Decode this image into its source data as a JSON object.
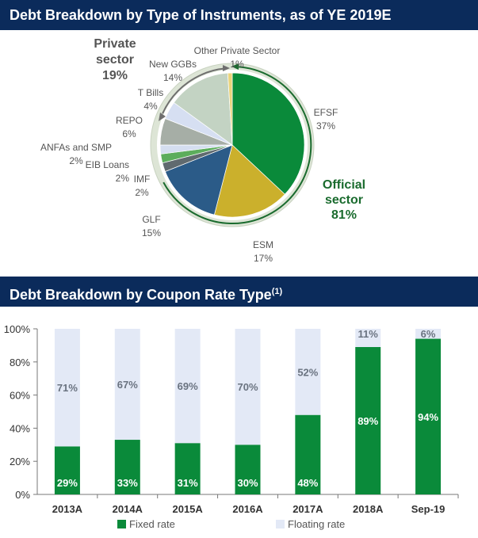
{
  "colors": {
    "banner_bg": "#0b2b5b",
    "official": "#0a8a3a",
    "fixed": "#0a8a3a",
    "floating": "#e3e9f6",
    "green_text": "#1a6b2e",
    "ring": "#dde5d6",
    "gray_text": "#555555"
  },
  "chart_data": [
    {
      "type": "pie",
      "title": "Debt Breakdown by Type of Instruments, as of YE 2019E",
      "group_labels": {
        "private": {
          "title": "Private sector",
          "line1": "Private",
          "line2": "sector",
          "value": "19%"
        },
        "official": {
          "title": "Official sector",
          "line1": "Official",
          "line2": "sector",
          "value": "81%"
        }
      },
      "slices": [
        {
          "label": "EFSF",
          "value": 37,
          "display": "37%",
          "color": "#0a8a3a"
        },
        {
          "label": "ESM",
          "value": 17,
          "display": "17%",
          "color": "#cbb02c"
        },
        {
          "label": "GLF",
          "value": 15,
          "display": "15%",
          "color": "#2b5b88"
        },
        {
          "label": "IMF",
          "value": 2,
          "display": "2%",
          "color": "#606a6f"
        },
        {
          "label": "EIB Loans",
          "value": 2,
          "display": "2%",
          "color": "#5cad5c"
        },
        {
          "label": "ANFAs and SMP",
          "value": 2,
          "display": "2%",
          "color": "#d5def0"
        },
        {
          "label": "REPO",
          "value": 6,
          "display": "6%",
          "color": "#a6aea6"
        },
        {
          "label": "T Bills",
          "value": 4,
          "display": "4%",
          "color": "#d6dff2"
        },
        {
          "label": "New GGBs",
          "value": 14,
          "display": "14%",
          "color": "#c3d3c3"
        },
        {
          "label": "Other Private Sector",
          "value": 1,
          "display": "1%",
          "color": "#ebd47b"
        }
      ]
    },
    {
      "type": "bar",
      "stacked": true,
      "title": "Debt Breakdown by Coupon Rate Type",
      "title_sup": "(1)",
      "categories": [
        "2013A",
        "2014A",
        "2015A",
        "2016A",
        "2017A",
        "2018A",
        "Sep-19"
      ],
      "series": [
        {
          "name": "Fixed rate",
          "values": [
            29,
            33,
            31,
            30,
            48,
            89,
            94
          ],
          "labels": [
            "29%",
            "33%",
            "31%",
            "30%",
            "48%",
            "89%",
            "94%"
          ]
        },
        {
          "name": "Floating rate",
          "values": [
            71,
            67,
            69,
            70,
            52,
            11,
            6
          ],
          "labels": [
            "71%",
            "67%",
            "69%",
            "70%",
            "52%",
            "11%",
            "6%"
          ]
        }
      ],
      "ylim": [
        0,
        100
      ],
      "yticks": [
        "0%",
        "20%",
        "40%",
        "60%",
        "80%",
        "100%"
      ],
      "legend": "bottom"
    }
  ]
}
